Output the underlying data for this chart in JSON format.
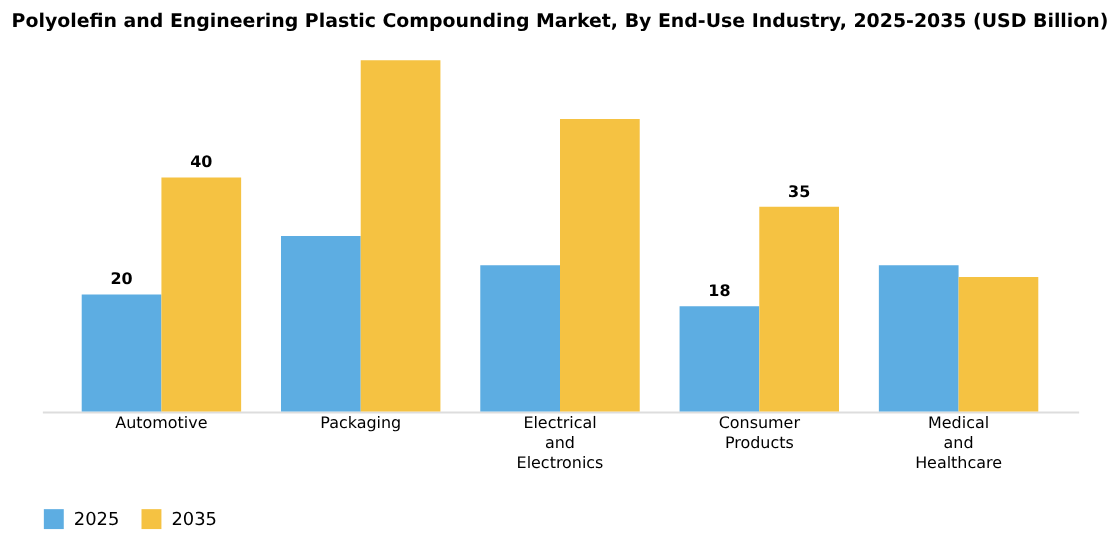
{
  "chart_data": {
    "type": "bar",
    "title": "Polyolefin and Engineering Plastic Compounding Market, By End-Use Industry, 2025-2035 (USD Billion)",
    "categories": [
      "Automotive",
      "Packaging",
      "Electrical and Electronics",
      "Consumer Products",
      "Medical and Healthcare"
    ],
    "series": [
      {
        "name": "2025",
        "color": "#5dade2",
        "values": [
          20,
          30,
          25,
          18,
          25
        ],
        "value_labels": [
          "20",
          null,
          null,
          "18",
          null
        ]
      },
      {
        "name": "2035",
        "color": "#f5c242",
        "values": [
          40,
          60,
          50,
          35,
          23
        ],
        "value_labels": [
          "40",
          null,
          null,
          "35",
          null
        ]
      }
    ],
    "legend": "bottom",
    "grid": false
  }
}
